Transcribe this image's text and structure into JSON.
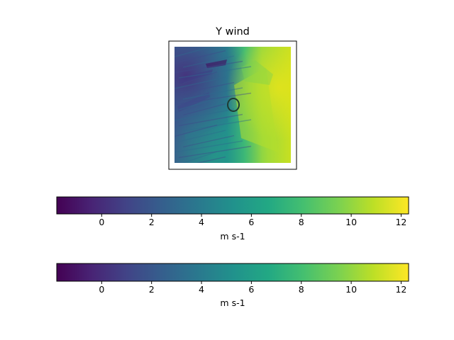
{
  "chart_data": {
    "type": "heatmap",
    "title": "Y wind",
    "colormap": "viridis",
    "value_range": [
      -1.8,
      12.3
    ],
    "colorbars": [
      {
        "ticks": [
          0,
          2,
          4,
          6,
          8,
          10,
          12
        ],
        "tick_labels": [
          "0",
          "2",
          "4",
          "6",
          "8",
          "10",
          "12"
        ],
        "label": "m s-1"
      },
      {
        "ticks": [
          0,
          2,
          4,
          6,
          8,
          10,
          12
        ],
        "tick_labels": [
          "0",
          "2",
          "4",
          "6",
          "8",
          "10",
          "12"
        ],
        "label": "m s-1"
      }
    ],
    "field_description": "low values (purple/blue, about -1 to 3) across the west and north-west, high values (green/yellow, about 8 to 12) across the east, with a dark circular contour near the centre"
  }
}
